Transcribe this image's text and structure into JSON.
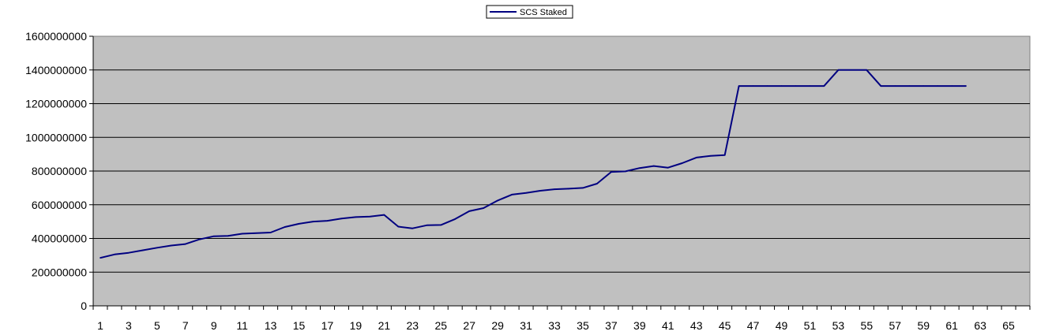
{
  "chart_data": {
    "type": "line",
    "title": "",
    "xlabel": "",
    "ylabel": "",
    "legend": {
      "placement": "top-center",
      "entries": [
        "SCS Staked"
      ]
    },
    "grid": {
      "horizontal": true,
      "vertical": false
    },
    "colors": {
      "plot_background": "#c0c0c0",
      "line": "#000080",
      "gridline": "#000000"
    },
    "xlim": [
      1,
      66
    ],
    "ylim": [
      0,
      1600000000
    ],
    "ytick_values": [
      0,
      200000000,
      400000000,
      600000000,
      800000000,
      1000000000,
      1200000000,
      1400000000,
      1600000000
    ],
    "ytick_labels": [
      "0",
      "200000000",
      "400000000",
      "600000000",
      "800000000",
      "1000000000",
      "1200000000",
      "1400000000",
      "1600000000"
    ],
    "xtick_labels": [
      "1",
      "3",
      "5",
      "7",
      "9",
      "11",
      "13",
      "15",
      "17",
      "19",
      "21",
      "23",
      "25",
      "27",
      "29",
      "31",
      "33",
      "35",
      "37",
      "39",
      "41",
      "43",
      "45",
      "47",
      "49",
      "51",
      "53",
      "55",
      "57",
      "59",
      "61",
      "63",
      "65"
    ],
    "series": [
      {
        "name": "SCS Staked",
        "x": [
          1,
          2,
          3,
          4,
          5,
          6,
          7,
          8,
          9,
          10,
          11,
          12,
          13,
          14,
          15,
          16,
          17,
          18,
          19,
          20,
          21,
          22,
          23,
          24,
          25,
          26,
          27,
          28,
          29,
          30,
          31,
          32,
          33,
          34,
          35,
          36,
          37,
          38,
          39,
          40,
          41,
          42,
          43,
          44,
          45,
          46,
          47,
          48,
          49,
          50,
          51,
          52,
          53,
          54,
          55,
          56,
          57,
          58,
          59,
          60,
          61,
          62
        ],
        "values": [
          285000000,
          305000000,
          315000000,
          330000000,
          345000000,
          358000000,
          367000000,
          395000000,
          413000000,
          415000000,
          428000000,
          432000000,
          435000000,
          468000000,
          487000000,
          500000000,
          505000000,
          518000000,
          527000000,
          530000000,
          540000000,
          470000000,
          460000000,
          478000000,
          480000000,
          515000000,
          562000000,
          580000000,
          625000000,
          660000000,
          670000000,
          683000000,
          692000000,
          695000000,
          700000000,
          725000000,
          795000000,
          798000000,
          818000000,
          830000000,
          820000000,
          847000000,
          880000000,
          890000000,
          895000000,
          1305000000,
          1305000000,
          1305000000,
          1305000000,
          1305000000,
          1305000000,
          1305000000,
          1400000000,
          1400000000,
          1400000000,
          1305000000,
          1305000000,
          1305000000,
          1305000000,
          1305000000,
          1305000000,
          1305000000
        ]
      }
    ]
  }
}
